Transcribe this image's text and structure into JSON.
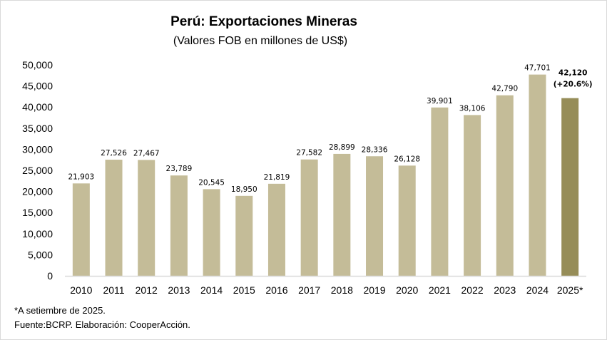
{
  "chart_data": {
    "type": "bar",
    "title": "Perú: Exportaciones Mineras",
    "subtitle": "(Valores FOB en millones de US$)",
    "xlabel": "",
    "ylabel": "",
    "ylim": [
      0,
      50000
    ],
    "yticks": [
      0,
      5000,
      10000,
      15000,
      20000,
      25000,
      30000,
      35000,
      40000,
      45000,
      50000
    ],
    "ytick_labels": [
      "0",
      "5,000",
      "10,000",
      "15,000",
      "20,000",
      "25,000",
      "30,000",
      "35,000",
      "40,000",
      "45,000",
      "50,000"
    ],
    "grid": false,
    "categories": [
      "2010",
      "2011",
      "2012",
      "2013",
      "2014",
      "2015",
      "2016",
      "2017",
      "2018",
      "2019",
      "2020",
      "2021",
      "2022",
      "2023",
      "2024",
      "2025*"
    ],
    "values": [
      21903,
      27526,
      27467,
      23789,
      20545,
      18950,
      21819,
      27582,
      28899,
      28336,
      26128,
      39901,
      38106,
      42790,
      47701,
      42120
    ],
    "data_labels": [
      "21,903",
      "27,526",
      "27,467",
      "23,789",
      "20,545",
      "18,950",
      "21,819",
      "27,582",
      "28,899",
      "28,336",
      "26,128",
      "39,901",
      "38,106",
      "42,790",
      "47,701",
      "42,120"
    ],
    "highlight_annotation": "(+20.6%)",
    "colors": {
      "bar": "#c4bc98",
      "highlight": "#968d58",
      "axis": "#d9d9d9"
    }
  },
  "notes": {
    "footnote": "*A setiembre de 2025.",
    "source": "Fuente:BCRP. Elaboración: CooperAcción."
  }
}
